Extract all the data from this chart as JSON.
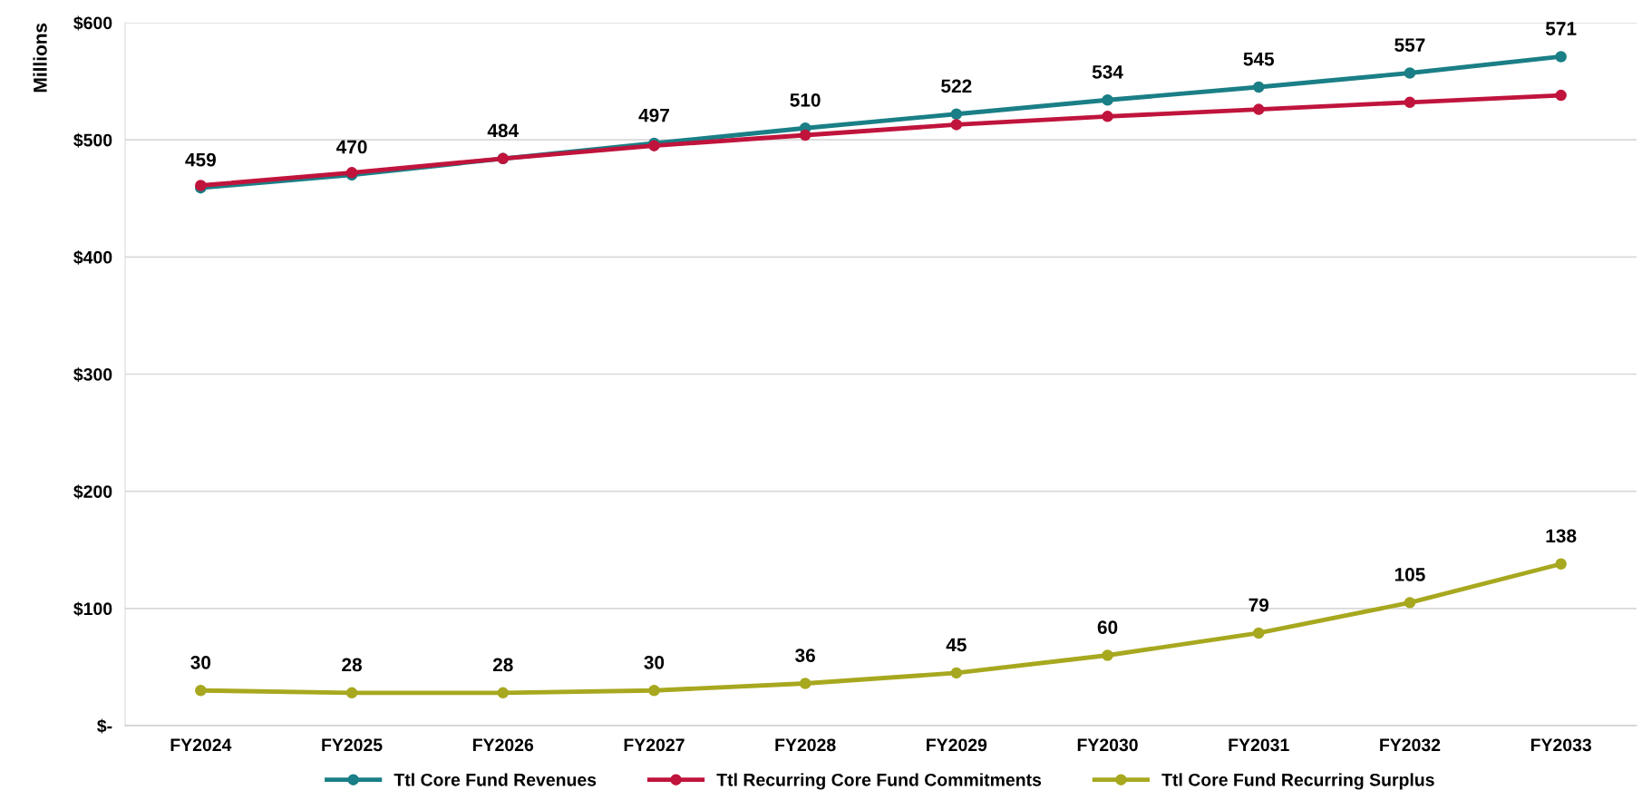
{
  "chart_data": {
    "type": "line",
    "ylabel": "Millions",
    "categories": [
      "FY2024",
      "FY2025",
      "FY2026",
      "FY2027",
      "FY2028",
      "FY2029",
      "FY2030",
      "FY2031",
      "FY2032",
      "FY2033"
    ],
    "series": [
      {
        "name": "Ttl Core Fund Revenues",
        "color": "#1a7f86",
        "values": [
          459,
          470,
          484,
          497,
          510,
          522,
          534,
          545,
          557,
          571
        ],
        "value_labels": [
          "459",
          "470",
          "484",
          "497",
          "510",
          "522",
          "534",
          "545",
          "557",
          "571"
        ]
      },
      {
        "name": "Ttl Recurring Core Fund Commitments",
        "color": "#c0143c",
        "values": [
          461,
          472,
          484,
          495,
          504,
          513,
          520,
          526,
          532,
          538
        ]
      },
      {
        "name": "Ttl Core Fund Recurring Surplus",
        "color": "#a8a820",
        "values": [
          30,
          28,
          28,
          30,
          36,
          45,
          60,
          79,
          105,
          138
        ],
        "value_labels": [
          "30",
          "28",
          "28",
          "30",
          "36",
          "45",
          "60",
          "79",
          "105",
          "138"
        ]
      }
    ],
    "ylim": [
      0,
      600
    ],
    "yticks": [
      {
        "value": 0,
        "label": "$-"
      },
      {
        "value": 100,
        "label": "$100"
      },
      {
        "value": 200,
        "label": "$200"
      },
      {
        "value": 300,
        "label": "$300"
      },
      {
        "value": 400,
        "label": "$400"
      },
      {
        "value": 500,
        "label": "$500"
      },
      {
        "value": 600,
        "label": "$600"
      }
    ],
    "grid": "y",
    "legend": "bottom",
    "marker": "circle",
    "line_style": "solid"
  }
}
